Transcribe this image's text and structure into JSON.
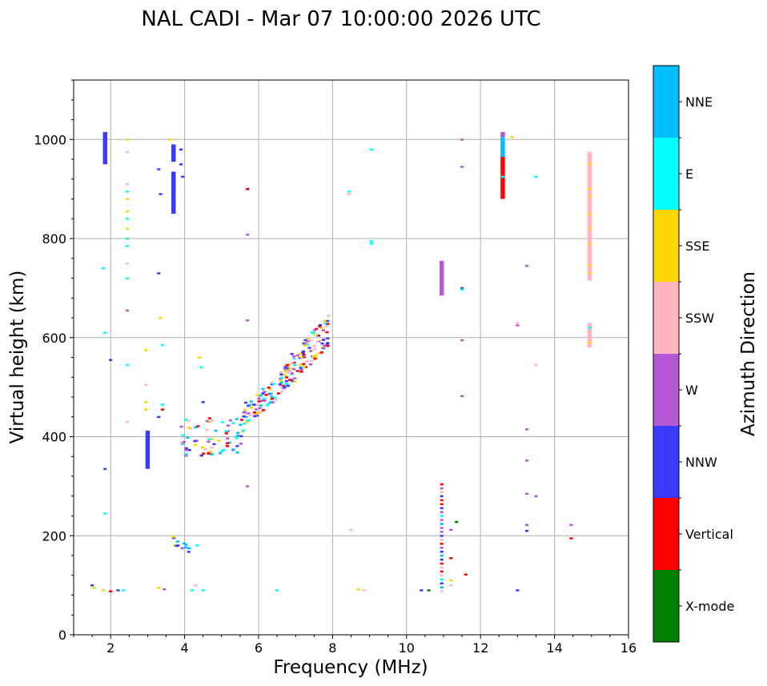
{
  "chart_data": {
    "type": "scatter",
    "title": "NAL CADI - Mar 07 10:00:00 2026 UTC",
    "xlabel": "Frequency (MHz)",
    "ylabel": "Virtual height (km)",
    "xlim": [
      1,
      16
    ],
    "ylim": [
      0,
      1120
    ],
    "xticks": [
      2,
      4,
      6,
      8,
      10,
      12,
      14,
      16
    ],
    "yticks": [
      0,
      200,
      400,
      600,
      800,
      1000
    ],
    "grid": true,
    "colorbar": {
      "title": "Azimuth Direction",
      "categories": [
        {
          "name": "X-mode",
          "color": "#008000"
        },
        {
          "name": "Vertical",
          "color": "#ff0000"
        },
        {
          "name": "NNW",
          "color": "#3a3aff"
        },
        {
          "name": "W",
          "color": "#b657d6"
        },
        {
          "name": "SSW",
          "color": "#ffb6c1"
        },
        {
          "name": "SSE",
          "color": "#ffd700"
        },
        {
          "name": "E",
          "color": "#00ffff"
        },
        {
          "name": "NNE",
          "color": "#00bfff"
        }
      ]
    },
    "columns": [
      {
        "x": 1.85,
        "segments": [
          [
            950,
            1015,
            "NNW"
          ]
        ]
      },
      {
        "x": 3.0,
        "segments": [
          [
            335,
            412,
            "NNW"
          ]
        ]
      },
      {
        "x": 3.7,
        "segments": [
          [
            850,
            935,
            "NNW"
          ],
          [
            955,
            990,
            "NNW"
          ]
        ]
      },
      {
        "x": 10.95,
        "segments": [
          [
            685,
            755,
            "W"
          ]
        ]
      },
      {
        "x": 12.6,
        "segments": [
          [
            880,
            965,
            "Vertical"
          ],
          [
            965,
            1005,
            "NNE"
          ],
          [
            1005,
            1015,
            "W"
          ]
        ]
      },
      {
        "x": 14.95,
        "segments": [
          [
            715,
            975,
            "SSW"
          ],
          [
            580,
            630,
            "SSW"
          ]
        ]
      }
    ],
    "points": [
      [
        1.5,
        100,
        "NNW"
      ],
      [
        1.55,
        95,
        "SSE"
      ],
      [
        1.8,
        90,
        "SSE"
      ],
      [
        2.0,
        88,
        "Vertical"
      ],
      [
        2.2,
        90,
        "NNW"
      ],
      [
        2.35,
        90,
        "E"
      ],
      [
        3.3,
        95,
        "SSE"
      ],
      [
        3.45,
        92,
        "W"
      ],
      [
        4.2,
        90,
        "E"
      ],
      [
        4.3,
        100,
        "SSW"
      ],
      [
        4.5,
        90,
        "E"
      ],
      [
        6.5,
        90,
        "E"
      ],
      [
        8.7,
        92,
        "SSE"
      ],
      [
        8.85,
        90,
        "SSW"
      ],
      [
        10.4,
        90,
        "NNW"
      ],
      [
        10.6,
        90,
        "X-mode"
      ],
      [
        13.0,
        90,
        "NNW"
      ],
      [
        1.85,
        245,
        "E"
      ],
      [
        1.85,
        335,
        "NNW"
      ],
      [
        1.85,
        610,
        "E"
      ],
      [
        1.8,
        740,
        "E"
      ],
      [
        2.0,
        555,
        "NNW"
      ],
      [
        2.45,
        1000,
        "SSE"
      ],
      [
        2.45,
        975,
        "SSW"
      ],
      [
        2.45,
        910,
        "SSW"
      ],
      [
        2.45,
        895,
        "E"
      ],
      [
        2.45,
        880,
        "SSE"
      ],
      [
        2.45,
        855,
        "SSE"
      ],
      [
        2.45,
        840,
        "E"
      ],
      [
        2.45,
        820,
        "SSE"
      ],
      [
        2.45,
        800,
        "E"
      ],
      [
        2.45,
        785,
        "E"
      ],
      [
        2.45,
        750,
        "SSW"
      ],
      [
        2.45,
        720,
        "E"
      ],
      [
        2.45,
        655,
        "W"
      ],
      [
        2.45,
        545,
        "E"
      ],
      [
        2.45,
        430,
        "SSW"
      ],
      [
        2.95,
        575,
        "SSE"
      ],
      [
        2.95,
        505,
        "SSW"
      ],
      [
        2.95,
        470,
        "SSE"
      ],
      [
        2.95,
        455,
        "SSE"
      ],
      [
        3.3,
        730,
        "NNW"
      ],
      [
        3.35,
        640,
        "SSE"
      ],
      [
        3.4,
        585,
        "E"
      ],
      [
        3.4,
        465,
        "E"
      ],
      [
        3.4,
        455,
        "Vertical"
      ],
      [
        3.3,
        440,
        "NNW"
      ],
      [
        3.3,
        940,
        "NNW"
      ],
      [
        3.35,
        890,
        "NNW"
      ],
      [
        3.6,
        1000,
        "SSE"
      ],
      [
        3.9,
        980,
        "NNW"
      ],
      [
        3.9,
        950,
        "NNW"
      ],
      [
        3.95,
        925,
        "NNW"
      ],
      [
        4.4,
        560,
        "SSE"
      ],
      [
        4.45,
        540,
        "E"
      ],
      [
        4.5,
        470,
        "NNW"
      ],
      [
        5.7,
        900,
        "Vertical"
      ],
      [
        5.7,
        808,
        "W"
      ],
      [
        5.7,
        635,
        "W"
      ],
      [
        5.7,
        300,
        "W"
      ],
      [
        8.45,
        895,
        "E"
      ],
      [
        8.45,
        890,
        "SSW"
      ],
      [
        9.05,
        980,
        "E"
      ],
      [
        9.05,
        795,
        "E"
      ],
      [
        9.05,
        790,
        "E"
      ],
      [
        8.5,
        212,
        "SSW"
      ],
      [
        11.5,
        1000,
        "W"
      ],
      [
        11.5,
        945,
        "W"
      ],
      [
        11.5,
        700,
        "NNW"
      ],
      [
        11.5,
        697,
        "E"
      ],
      [
        11.5,
        595,
        "W"
      ],
      [
        11.5,
        482,
        "W"
      ],
      [
        11.6,
        122,
        "Vertical"
      ],
      [
        11.35,
        228,
        "X-mode"
      ],
      [
        11.2,
        212,
        "W"
      ],
      [
        11.2,
        155,
        "Vertical"
      ],
      [
        11.2,
        110,
        "SSE"
      ],
      [
        11.2,
        100,
        "SSW"
      ],
      [
        12.85,
        1005,
        "SSE"
      ],
      [
        12.6,
        925,
        "E"
      ],
      [
        13.5,
        925,
        "E"
      ],
      [
        13.25,
        745,
        "W"
      ],
      [
        13.0,
        630,
        "SSW"
      ],
      [
        13.0,
        625,
        "W"
      ],
      [
        13.5,
        545,
        "SSW"
      ],
      [
        13.25,
        415,
        "W"
      ],
      [
        13.25,
        352,
        "W"
      ],
      [
        13.25,
        285,
        "W"
      ],
      [
        13.5,
        280,
        "W"
      ],
      [
        13.25,
        222,
        "W"
      ],
      [
        13.25,
        210,
        "NNW"
      ],
      [
        14.45,
        222,
        "W"
      ],
      [
        14.45,
        195,
        "Vertical"
      ]
    ],
    "clusters": [
      {
        "x": [
          3.65,
          4.35
        ],
        "y": [
          165,
          200
        ],
        "colors": [
          "NNE",
          "E",
          "NNW",
          "W",
          "SSE"
        ]
      },
      {
        "x": [
          3.9,
          5.6
        ],
        "y": [
          360,
          440
        ],
        "colors": [
          "NNW",
          "E",
          "NNE",
          "W",
          "SSW",
          "SSE",
          "Vertical"
        ]
      },
      {
        "x": [
          5.6,
          6.8
        ],
        "y": [
          420,
          535
        ],
        "colors": [
          "NNW",
          "W",
          "E",
          "SSW",
          "SSE",
          "Vertical",
          "NNE"
        ]
      },
      {
        "x": [
          6.6,
          7.9
        ],
        "y": [
          480,
          640
        ],
        "colors": [
          "NNW",
          "W",
          "E",
          "SSW",
          "SSE",
          "Vertical"
        ]
      }
    ],
    "column_11": {
      "x": 10.95,
      "y": [
        88,
        305
      ],
      "colors": [
        "NNE",
        "Vertical",
        "E",
        "NNW",
        "SSW",
        "W",
        "Vertical"
      ]
    }
  }
}
